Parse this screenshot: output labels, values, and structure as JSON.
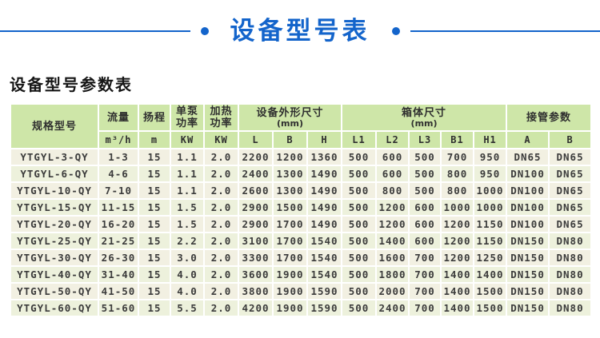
{
  "banner": {
    "title": "设备型号表"
  },
  "section_title": "设备型号参数表",
  "colors": {
    "accent": "#1364cb",
    "header_bg": "#cee6a8",
    "row_odd": "#f2f0e2",
    "row_even": "#edf1dc",
    "text_dark": "#3b3b3b",
    "header_text": "#2f2f2f"
  },
  "table": {
    "header": {
      "model": "规格型号",
      "flow": {
        "label": "流量",
        "unit": "m³/h"
      },
      "head": {
        "label": "扬程",
        "unit": "m"
      },
      "pump_power": {
        "label": "单泵功率",
        "unit": "KW"
      },
      "heat_power": {
        "label": "加热功率",
        "unit": "KW"
      },
      "dims": {
        "label": "设备外形尺寸",
        "unit_note": "(mm)",
        "cols": [
          "L",
          "B",
          "H"
        ]
      },
      "tank": {
        "label": "箱体尺寸",
        "unit_note": "(mm)",
        "cols": [
          "L1",
          "L2",
          "L3",
          "B1",
          "H1"
        ]
      },
      "pipe": {
        "label": "接管参数",
        "cols": [
          "A",
          "B"
        ]
      }
    },
    "rows": [
      [
        "YTGYL-3-QY",
        "1-3",
        "15",
        "1.1",
        "2.0",
        "2200",
        "1200",
        "1360",
        "500",
        "600",
        "500",
        "700",
        "950",
        "DN65",
        "DN65"
      ],
      [
        "YTGYL-6-QY",
        "4-6",
        "15",
        "1.1",
        "2.0",
        "2400",
        "1300",
        "1490",
        "500",
        "600",
        "500",
        "800",
        "950",
        "DN100",
        "DN65"
      ],
      [
        "YTGYL-10-QY",
        "7-10",
        "15",
        "1.1",
        "2.0",
        "2600",
        "1300",
        "1490",
        "500",
        "800",
        "500",
        "800",
        "1000",
        "DN100",
        "DN65"
      ],
      [
        "YTGYL-15-QY",
        "11-15",
        "15",
        "1.5",
        "2.0",
        "2900",
        "1500",
        "1490",
        "500",
        "1200",
        "600",
        "1000",
        "1000",
        "DN100",
        "DN65"
      ],
      [
        "YTGYL-20-QY",
        "16-20",
        "15",
        "1.5",
        "2.0",
        "2900",
        "1700",
        "1490",
        "500",
        "1200",
        "600",
        "1200",
        "1150",
        "DN100",
        "DN65"
      ],
      [
        "YTGYL-25-QY",
        "21-25",
        "15",
        "2.2",
        "2.0",
        "3100",
        "1700",
        "1540",
        "500",
        "1400",
        "600",
        "1200",
        "1150",
        "DN150",
        "DN80"
      ],
      [
        "YTGYL-30-QY",
        "26-30",
        "15",
        "3.0",
        "2.0",
        "3300",
        "1700",
        "1540",
        "500",
        "1600",
        "700",
        "1200",
        "1250",
        "DN150",
        "DN80"
      ],
      [
        "YTGYL-40-QY",
        "31-40",
        "15",
        "4.0",
        "2.0",
        "3600",
        "1900",
        "1540",
        "500",
        "1800",
        "700",
        "1400",
        "1400",
        "DN150",
        "DN80"
      ],
      [
        "YTGYL-50-QY",
        "41-50",
        "15",
        "4.0",
        "2.0",
        "3800",
        "1900",
        "1590",
        "500",
        "2000",
        "700",
        "1400",
        "1500",
        "DN150",
        "DN80"
      ],
      [
        "YTGYL-60-QY",
        "51-60",
        "15",
        "5.5",
        "2.0",
        "4200",
        "1900",
        "1590",
        "500",
        "2400",
        "700",
        "1400",
        "1500",
        "DN150",
        "DN80"
      ]
    ]
  }
}
